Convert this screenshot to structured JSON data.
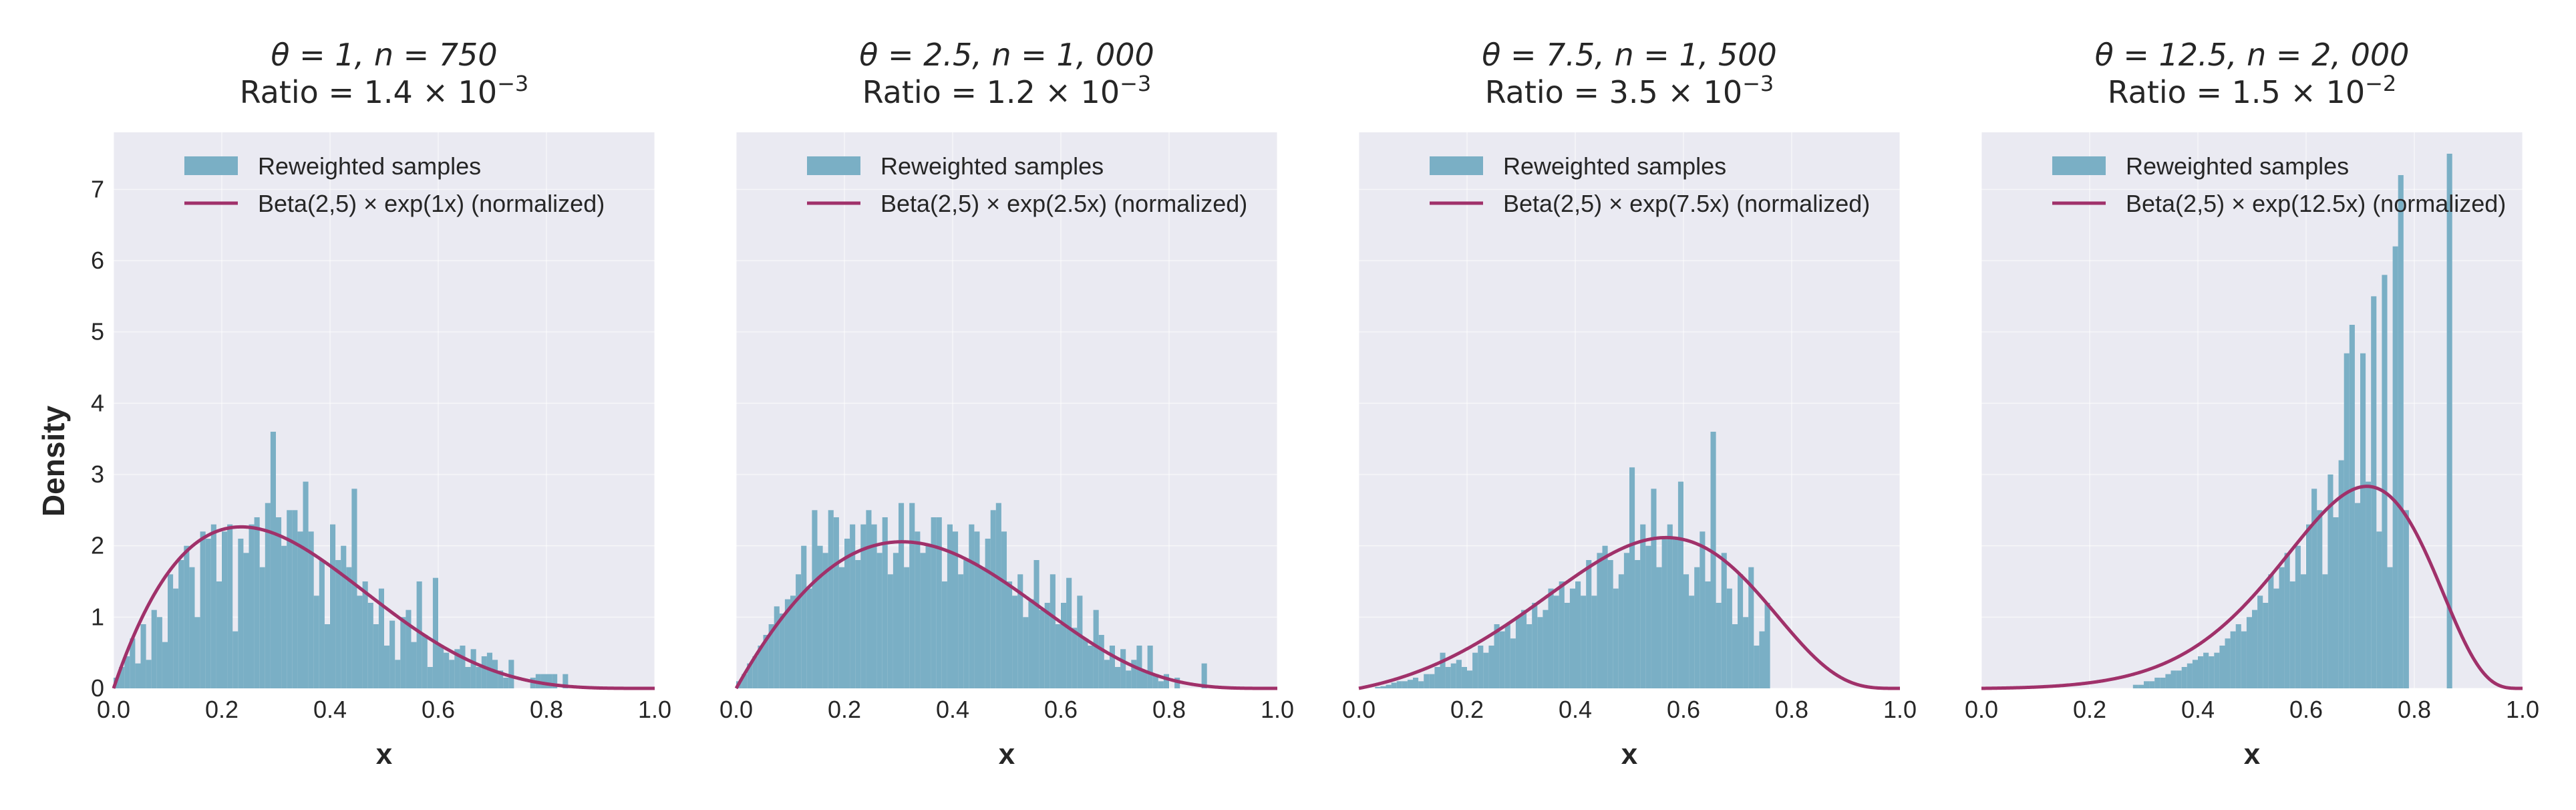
{
  "figure": {
    "ylabel": "Density",
    "colors": {
      "plot_bg": "#eaeaf2",
      "bar": "#7aafc5",
      "curve": "#a0316a",
      "text": "#262626",
      "grid": "#ffffff"
    }
  },
  "chart_data": [
    {
      "type": "histogram+line",
      "title_line1": "θ = 1, n = 750",
      "title_line2_prefix": "Ratio = 1.4 × 10",
      "title_line2_exponent": "−3",
      "xlabel": "x",
      "ylabel": "Density",
      "xlim": [
        0.0,
        1.0
      ],
      "ylim": [
        0,
        7.8
      ],
      "xticks": [
        "0.0",
        "0.2",
        "0.4",
        "0.6",
        "0.8",
        "1.0"
      ],
      "yticks": [
        "0",
        "1",
        "2",
        "3",
        "4",
        "5",
        "6",
        "7"
      ],
      "legend": {
        "bars": "Reweighted samples",
        "line": "Beta(2,5) × exp(1x) (normalized)"
      },
      "curve": {
        "a": 2,
        "b": 5,
        "theta": 1
      },
      "bin_width": 0.01,
      "bins_start": 0.0,
      "histogram": [
        0.15,
        0.3,
        0.45,
        0.7,
        0.35,
        0.9,
        0.4,
        1.1,
        1.0,
        0.65,
        1.6,
        1.4,
        1.8,
        2.0,
        1.7,
        1.0,
        2.2,
        2.1,
        2.3,
        1.5,
        2.2,
        2.3,
        0.8,
        2.1,
        1.9,
        2.3,
        2.4,
        1.7,
        2.6,
        3.6,
        2.4,
        2.0,
        2.5,
        2.5,
        2.2,
        2.9,
        2.2,
        1.3,
        1.8,
        0.9,
        2.3,
        1.8,
        2.0,
        1.7,
        2.8,
        1.3,
        1.5,
        1.2,
        0.9,
        1.4,
        0.6,
        0.95,
        0.4,
        1.0,
        1.1,
        0.65,
        1.5,
        0.75,
        0.3,
        1.55,
        0.6,
        0.5,
        0.4,
        0.55,
        0.6,
        0.3,
        0.55,
        0.3,
        0.45,
        0.5,
        0.4,
        0.25,
        0.15,
        0.4,
        0.0,
        0.0,
        0.0,
        0.15,
        0.2,
        0.2,
        0.2,
        0.2,
        0.0,
        0.2,
        0.0,
        0,
        0,
        0,
        0,
        0,
        0,
        0,
        0,
        0,
        0,
        0,
        0,
        0,
        0,
        0
      ]
    },
    {
      "type": "histogram+line",
      "title_line1": "θ = 2.5, n = 1, 000",
      "title_line2_prefix": "Ratio = 1.2 × 10",
      "title_line2_exponent": "−3",
      "xlabel": "x",
      "ylabel": "",
      "xlim": [
        0.0,
        1.0
      ],
      "ylim": [
        0,
        7.8
      ],
      "xticks": [
        "0.0",
        "0.2",
        "0.4",
        "0.6",
        "0.8",
        "1.0"
      ],
      "yticks": [],
      "legend": {
        "bars": "Reweighted samples",
        "line": "Beta(2,5) × exp(2.5x) (normalized)"
      },
      "curve": {
        "a": 2,
        "b": 5,
        "theta": 2.5
      },
      "bin_width": 0.01,
      "bins_start": 0.0,
      "histogram": [
        0.1,
        0.2,
        0.35,
        0.45,
        0.6,
        0.75,
        0.9,
        1.15,
        1.05,
        1.25,
        1.3,
        1.6,
        2.0,
        1.4,
        2.5,
        2.0,
        1.9,
        2.5,
        2.4,
        1.7,
        2.1,
        2.3,
        1.8,
        2.3,
        2.5,
        2.3,
        1.9,
        2.4,
        1.6,
        1.9,
        2.6,
        1.7,
        2.6,
        2.2,
        1.9,
        2.0,
        2.4,
        2.4,
        1.5,
        2.3,
        2.2,
        1.6,
        1.8,
        2.3,
        2.2,
        1.7,
        2.1,
        2.5,
        2.6,
        2.2,
        1.5,
        1.3,
        1.6,
        1.0,
        1.25,
        1.8,
        1.1,
        1.2,
        1.6,
        0.9,
        1.2,
        1.55,
        0.85,
        1.3,
        0.7,
        0.6,
        1.1,
        0.75,
        0.4,
        0.6,
        0.3,
        0.55,
        0.25,
        0.4,
        0.6,
        0.25,
        0.6,
        0.2,
        0.1,
        0.2,
        0.0,
        0.15,
        0.0,
        0.0,
        0.0,
        0.0,
        0.35,
        0,
        0,
        0,
        0,
        0,
        0,
        0,
        0,
        0,
        0,
        0,
        0,
        0
      ]
    },
    {
      "type": "histogram+line",
      "title_line1": "θ = 7.5, n = 1, 500",
      "title_line2_prefix": "Ratio = 3.5 × 10",
      "title_line2_exponent": "−3",
      "xlabel": "x",
      "ylabel": "",
      "xlim": [
        0.0,
        1.0
      ],
      "ylim": [
        0,
        7.8
      ],
      "xticks": [
        "0.0",
        "0.2",
        "0.4",
        "0.6",
        "0.8",
        "1.0"
      ],
      "yticks": [],
      "legend": {
        "bars": "Reweighted samples",
        "line": "Beta(2,5) × exp(7.5x) (normalized)"
      },
      "curve": {
        "a": 2,
        "b": 5,
        "theta": 7.5
      },
      "bin_width": 0.01,
      "bins_start": 0.0,
      "histogram": [
        0.0,
        0.0,
        0.0,
        0.02,
        0.03,
        0.05,
        0.08,
        0.1,
        0.1,
        0.12,
        0.15,
        0.1,
        0.2,
        0.2,
        0.3,
        0.5,
        0.3,
        0.35,
        0.4,
        0.3,
        0.25,
        0.5,
        0.6,
        0.5,
        0.6,
        0.9,
        0.8,
        0.9,
        0.7,
        1.0,
        1.1,
        0.9,
        1.2,
        1.0,
        1.1,
        1.4,
        1.3,
        1.5,
        1.2,
        1.4,
        1.5,
        1.3,
        1.8,
        1.3,
        1.9,
        2.0,
        1.8,
        1.4,
        1.6,
        1.9,
        3.1,
        1.8,
        2.3,
        2.0,
        2.8,
        1.7,
        2.1,
        2.3,
        2.1,
        2.9,
        1.6,
        1.3,
        1.7,
        2.2,
        1.5,
        3.6,
        1.2,
        1.9,
        1.4,
        0.9,
        1.6,
        1.0,
        1.7,
        0.6,
        0.8,
        1.2,
        0.0,
        0.0,
        0.0,
        0.0,
        0.0,
        0.0,
        0.0,
        0.0,
        0.0,
        0.0,
        0.0,
        0.0,
        0.0,
        0.0,
        0,
        0,
        0,
        0,
        0,
        0,
        0,
        0,
        0,
        0
      ]
    },
    {
      "type": "histogram+line",
      "title_line1": "θ = 12.5, n = 2, 000",
      "title_line2_prefix": "Ratio = 1.5 × 10",
      "title_line2_exponent": "−2",
      "xlabel": "x",
      "ylabel": "",
      "xlim": [
        0.0,
        1.0
      ],
      "ylim": [
        0,
        7.8
      ],
      "xticks": [
        "0.0",
        "0.2",
        "0.4",
        "0.6",
        "0.8",
        "1.0"
      ],
      "yticks": [],
      "legend": {
        "bars": "Reweighted samples",
        "line": "Beta(2,5) × exp(12.5x) (normalized)"
      },
      "curve": {
        "a": 2,
        "b": 5,
        "theta": 12.5
      },
      "bin_width": 0.01,
      "bins_start": 0.0,
      "histogram": [
        0,
        0,
        0,
        0,
        0,
        0,
        0,
        0,
        0,
        0,
        0,
        0,
        0,
        0,
        0,
        0,
        0,
        0,
        0,
        0,
        0,
        0,
        0,
        0,
        0,
        0,
        0,
        0,
        0.05,
        0.05,
        0.1,
        0.1,
        0.15,
        0.15,
        0.2,
        0.25,
        0.25,
        0.3,
        0.35,
        0.4,
        0.45,
        0.5,
        0.45,
        0.5,
        0.6,
        0.7,
        0.8,
        0.9,
        0.8,
        1.0,
        1.1,
        1.3,
        1.2,
        1.6,
        1.4,
        1.7,
        1.9,
        1.5,
        2.0,
        1.6,
        2.3,
        2.8,
        2.5,
        1.6,
        3.0,
        2.4,
        3.2,
        4.7,
        5.1,
        2.6,
        4.7,
        2.9,
        5.5,
        2.2,
        5.8,
        1.7,
        6.2,
        7.2,
        2.5,
        0.0,
        0.0,
        0.0,
        0.0,
        0.0,
        0.0,
        0.0,
        7.5,
        0.0,
        0,
        0,
        0,
        0,
        0,
        0,
        0,
        0,
        0,
        0,
        0,
        0
      ]
    }
  ]
}
